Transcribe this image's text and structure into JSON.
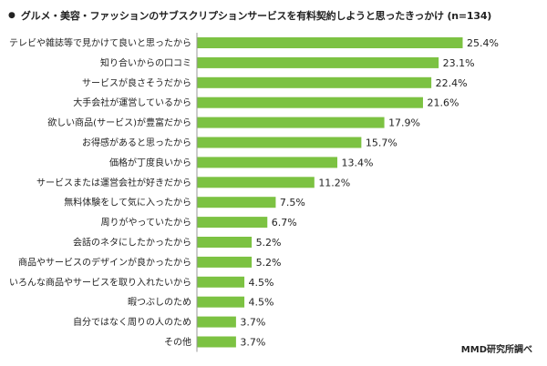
{
  "title_bullet": "●",
  "title": "グルメ・美容・ファッションのサブスクリプションサービスを有料契約しようと思ったきっかけ (n=134)",
  "source": "MMD研究所調べ",
  "colors": {
    "bar": "#7cc242",
    "axis": "#999999",
    "text": "#222222"
  },
  "chart_data": {
    "type": "bar",
    "orientation": "horizontal",
    "title": "グルメ・美容・ファッションのサブスクリプションサービスを有料契約しようと思ったきっかけ (n=134)",
    "categories": [
      "テレビや雑誌等で見かけて良いと思ったから",
      "知り合いからの口コミ",
      "サービスが良さそうだから",
      "大手会社が運営しているから",
      "欲しい商品(サービス)が豊富だから",
      "お得感があると思ったから",
      "価格が丁度良いから",
      "サービスまたは運営会社が好きだから",
      "無料体験をして気に入ったから",
      "周りがやっていたから",
      "会話のネタにしたかったから",
      "商品やサービスのデザインが良かったから",
      "いろんな商品やサービスを取り入れたいから",
      "暇つぶしのため",
      "自分ではなく周りの人のため",
      "その他"
    ],
    "values": [
      25.4,
      23.1,
      22.4,
      21.6,
      17.9,
      15.7,
      13.4,
      11.2,
      7.5,
      6.7,
      5.2,
      5.2,
      4.5,
      4.5,
      3.7,
      3.7
    ],
    "value_labels": [
      "25.4%",
      "23.1%",
      "22.4%",
      "21.6%",
      "17.9%",
      "15.7%",
      "13.4%",
      "11.2%",
      "7.5%",
      "6.7%",
      "5.2%",
      "5.2%",
      "4.5%",
      "4.5%",
      "3.7%",
      "3.7%"
    ],
    "unit": "%",
    "xlim": [
      0,
      25.4
    ],
    "grid": false,
    "legend": "none"
  }
}
